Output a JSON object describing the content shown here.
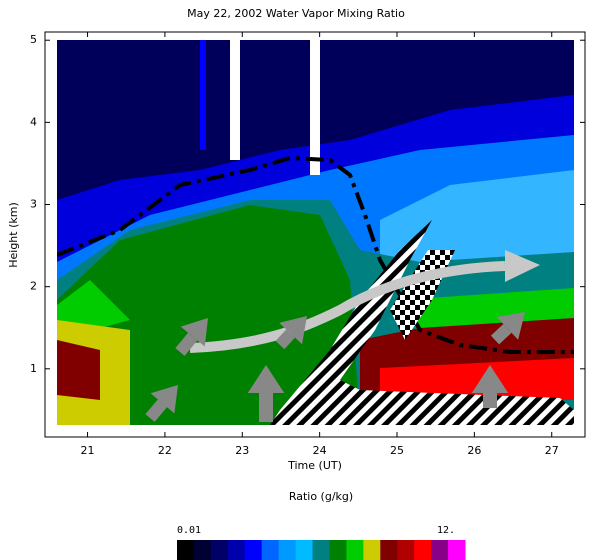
{
  "chart_data": {
    "type": "heatmap",
    "title": "May 22, 2002 Water Vapor Mixing Ratio",
    "xlabel": "Time (UT)",
    "ylabel": "Height (km)",
    "xlim": [
      20.45,
      27.43
    ],
    "xticks": [
      21,
      22,
      23,
      24,
      25,
      26,
      27
    ],
    "ylim": [
      0.17,
      5.1
    ],
    "yticks": [
      1,
      2,
      3,
      4,
      5
    ],
    "colorbar": {
      "label": "Ratio (g/kg)",
      "ticks": [
        0.01,
        {
          "value": 12,
          "label": "12."
        }
      ],
      "colors": [
        "#000000",
        "#000033",
        "#000066",
        "#0000aa",
        "#0000ff",
        "#0066ff",
        "#0099ff",
        "#00bbff",
        "#008080",
        "#008000",
        "#00cc00",
        "#cccc00",
        "#800000",
        "#b00000",
        "#ff0000",
        "#880088",
        "#ff00ff"
      ]
    }
  }
}
